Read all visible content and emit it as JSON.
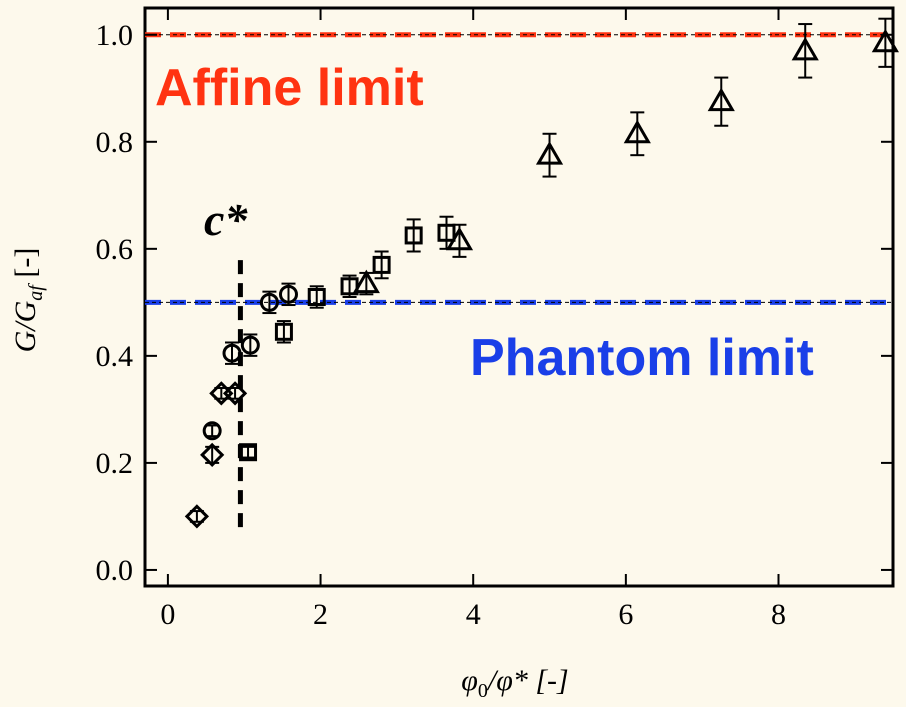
{
  "chart_data": {
    "type": "scatter",
    "title": "",
    "xlabel": {
      "phi": "φ",
      "sub": "0",
      "rest": "/φ* [-]"
    },
    "ylabel": {
      "g": "G/G",
      "sub": "af",
      "rest": " [-]"
    },
    "xlim": [
      -0.3,
      9.5
    ],
    "ylim": [
      -0.03,
      1.05
    ],
    "x_ticks": [
      0,
      2,
      4,
      6,
      8
    ],
    "y_ticks": [
      0.0,
      0.2,
      0.4,
      0.6,
      0.8,
      1.0
    ],
    "x_tick_labels": [
      "0",
      "2",
      "4",
      "6",
      "8"
    ],
    "y_tick_labels": [
      "0.0",
      "0.2",
      "0.4",
      "0.6",
      "0.8",
      "1.0"
    ],
    "grid": false,
    "reference_lines": [
      {
        "name": "Affine limit",
        "y": 1.0,
        "color": "#ff3311"
      },
      {
        "name": "Phantom limit",
        "y": 0.5,
        "color": "#1a3fe8"
      }
    ],
    "cstar": {
      "label": "c*",
      "x": 0.95,
      "y_range": [
        0.08,
        0.59
      ]
    },
    "annotations": [
      {
        "text": "Affine limit",
        "class": "red"
      },
      {
        "text": "Phantom limit",
        "class": "blue"
      },
      {
        "text": "c*",
        "class": "cstar"
      }
    ],
    "series": [
      {
        "marker": "diamond",
        "points": [
          {
            "x": 0.38,
            "y": 0.1,
            "err": 0.01
          },
          {
            "x": 0.58,
            "y": 0.215,
            "err": 0.015
          },
          {
            "x": 0.7,
            "y": 0.33,
            "err": 0.01
          },
          {
            "x": 0.88,
            "y": 0.33,
            "err": 0.01
          }
        ]
      },
      {
        "marker": "circle",
        "points": [
          {
            "x": 0.58,
            "y": 0.26,
            "err": 0.01
          },
          {
            "x": 0.84,
            "y": 0.405,
            "err": 0.02
          },
          {
            "x": 1.08,
            "y": 0.42,
            "err": 0.02
          },
          {
            "x": 1.33,
            "y": 0.5,
            "err": 0.02
          },
          {
            "x": 1.58,
            "y": 0.515,
            "err": 0.02
          }
        ]
      },
      {
        "marker": "square",
        "points": [
          {
            "x": 1.05,
            "y": 0.22,
            "err": 0.01
          },
          {
            "x": 1.52,
            "y": 0.445,
            "err": 0.02
          },
          {
            "x": 1.95,
            "y": 0.51,
            "err": 0.02
          },
          {
            "x": 2.38,
            "y": 0.53,
            "err": 0.02
          },
          {
            "x": 2.8,
            "y": 0.57,
            "err": 0.025
          },
          {
            "x": 3.22,
            "y": 0.625,
            "err": 0.03
          },
          {
            "x": 3.65,
            "y": 0.63,
            "err": 0.03
          }
        ]
      },
      {
        "marker": "triangle",
        "points": [
          {
            "x": 2.6,
            "y": 0.535,
            "err": 0.02
          },
          {
            "x": 3.82,
            "y": 0.615,
            "err": 0.03
          },
          {
            "x": 5.0,
            "y": 0.775,
            "err": 0.04
          },
          {
            "x": 6.15,
            "y": 0.815,
            "err": 0.04
          },
          {
            "x": 7.25,
            "y": 0.875,
            "err": 0.045
          },
          {
            "x": 8.35,
            "y": 0.97,
            "err": 0.05
          },
          {
            "x": 9.4,
            "y": 0.985,
            "err": 0.045
          }
        ]
      }
    ]
  }
}
